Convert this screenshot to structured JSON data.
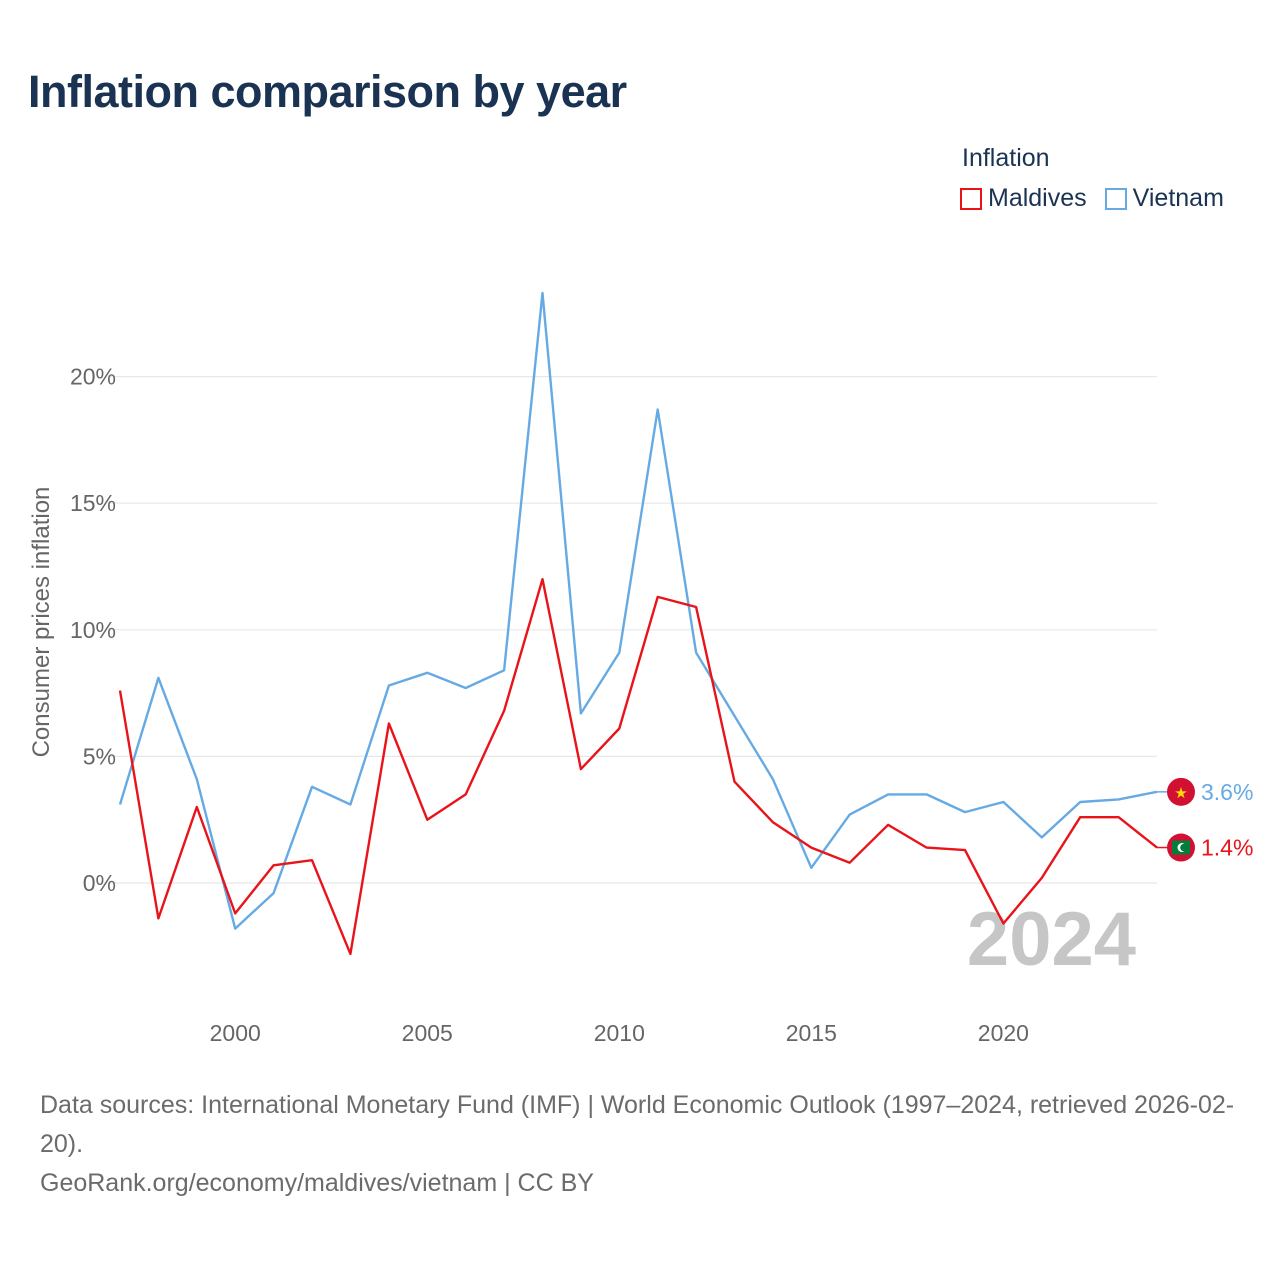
{
  "title": "Inflation comparison by year",
  "legend": {
    "title": "Inflation",
    "items": [
      {
        "label": "Maldives",
        "color": "#e8141a"
      },
      {
        "label": "Vietnam",
        "color": "#66aae4"
      }
    ]
  },
  "y_axis_label": "Consumer prices inflation",
  "year_watermark": "2024",
  "footer": {
    "sources": "Data sources: International Monetary Fund (IMF) | World Economic Outlook (1997–2024, retrieved 2026-02-20).",
    "credit": "GeoRank.org/economy/maldives/vietnam | CC BY"
  },
  "chart_data": {
    "type": "line",
    "title": "Inflation comparison by year",
    "xlabel": "",
    "ylabel": "Consumer prices inflation",
    "x": [
      1997,
      1998,
      1999,
      2000,
      2001,
      2002,
      2003,
      2004,
      2005,
      2006,
      2007,
      2008,
      2009,
      2010,
      2011,
      2012,
      2013,
      2014,
      2015,
      2016,
      2017,
      2018,
      2019,
      2020,
      2021,
      2022,
      2023,
      2024
    ],
    "xlim": [
      1997,
      2024
    ],
    "ylim": [
      -5,
      23.5
    ],
    "x_ticks": [
      2000,
      2005,
      2010,
      2015,
      2020
    ],
    "x_tick_labels": [
      "2000",
      "2005",
      "2010",
      "2015",
      "2020"
    ],
    "y_ticks": [
      0,
      5,
      10,
      15,
      20
    ],
    "y_tick_labels": [
      "0%",
      "5%",
      "10%",
      "15%",
      "20%"
    ],
    "grid": true,
    "legend_position": "top-right",
    "series": [
      {
        "name": "Maldives",
        "color": "#e8141a",
        "values": [
          7.6,
          -1.4,
          3.0,
          -1.2,
          0.7,
          0.9,
          -2.8,
          6.3,
          2.5,
          3.5,
          6.8,
          12.0,
          4.5,
          6.1,
          11.3,
          10.9,
          4.0,
          2.4,
          1.4,
          0.8,
          2.3,
          1.4,
          1.3,
          -1.6,
          0.2,
          2.6,
          2.6,
          1.4
        ],
        "end_label": "1.4%"
      },
      {
        "name": "Vietnam",
        "color": "#66aae4",
        "values": [
          3.1,
          8.1,
          4.1,
          -1.8,
          -0.4,
          3.8,
          3.1,
          7.8,
          8.3,
          7.7,
          8.4,
          23.3,
          6.7,
          9.1,
          18.7,
          9.1,
          6.6,
          4.1,
          0.6,
          2.7,
          3.5,
          3.5,
          2.8,
          3.2,
          1.8,
          3.2,
          3.3,
          3.6
        ],
        "end_label": "3.6%"
      }
    ]
  }
}
